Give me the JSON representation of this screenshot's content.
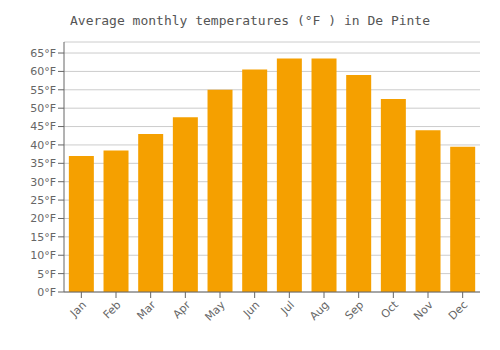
{
  "chart_data": {
    "type": "bar",
    "title": "Average monthly temperatures (°F ) in De Pinte",
    "categories": [
      "Jan",
      "Feb",
      "Mar",
      "Apr",
      "May",
      "Jun",
      "Jul",
      "Aug",
      "Sep",
      "Oct",
      "Nov",
      "Dec"
    ],
    "values": [
      37.0,
      38.5,
      43.0,
      47.5,
      55.0,
      60.5,
      63.5,
      63.5,
      59.0,
      52.5,
      44.0,
      39.5
    ],
    "color": "#F5A000",
    "ylim": [
      0,
      68
    ],
    "yticks": [
      {
        "value": 0,
        "label": "0°F"
      },
      {
        "value": 5,
        "label": "5°F"
      },
      {
        "value": 10,
        "label": "10°F"
      },
      {
        "value": 15,
        "label": "15°F"
      },
      {
        "value": 20,
        "label": "20°F"
      },
      {
        "value": 25,
        "label": "25°F"
      },
      {
        "value": 30,
        "label": "30°F"
      },
      {
        "value": 35,
        "label": "35°F"
      },
      {
        "value": 40,
        "label": "40°F"
      },
      {
        "value": 45,
        "label": "45°F"
      },
      {
        "value": 50,
        "label": "50°F"
      },
      {
        "value": 55,
        "label": "55°F"
      },
      {
        "value": 60,
        "label": "60°F"
      },
      {
        "value": 65,
        "label": "65°F"
      }
    ],
    "grid": true
  }
}
